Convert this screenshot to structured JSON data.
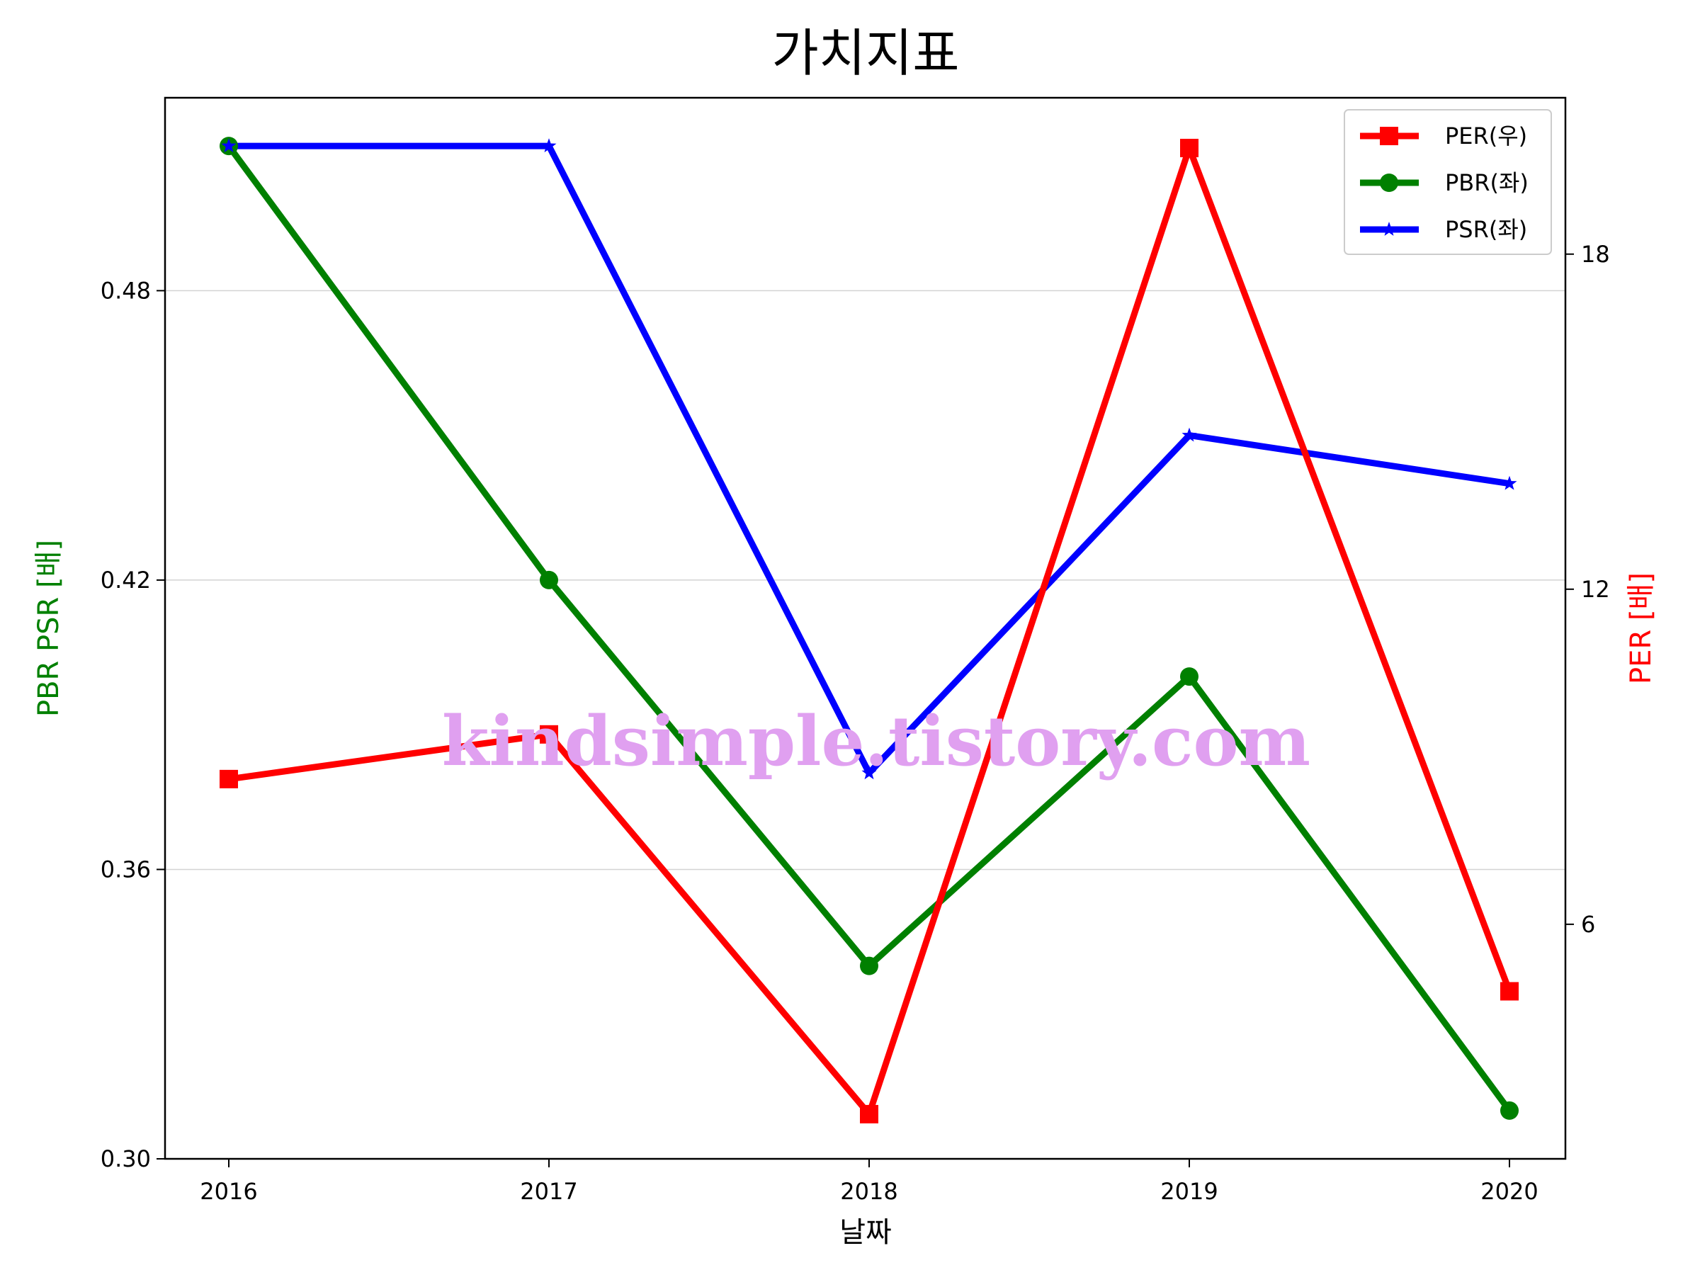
{
  "chart_data": {
    "type": "line",
    "title": "가치지표",
    "xlabel": "날짜",
    "ylabel_left": "PBR PSR [배]",
    "ylabel_right": "PER [배]",
    "x": [
      "2016",
      "2017",
      "2018",
      "2019",
      "2020"
    ],
    "left_axis": {
      "ylim": [
        0.3,
        0.52
      ],
      "ticks": [
        "0.30",
        "0.36",
        "0.42",
        "0.48"
      ],
      "tick_values": [
        0.3,
        0.36,
        0.42,
        0.48
      ]
    },
    "right_axis": {
      "ylim": [
        1.8,
        20.8
      ],
      "ticks": [
        "6",
        "12",
        "18"
      ],
      "tick_values": [
        6,
        12,
        18
      ]
    },
    "series": [
      {
        "name": "PER(우)",
        "axis": "right",
        "color": "#ff0000",
        "marker": "square",
        "values": [
          8.6,
          9.4,
          2.6,
          19.9,
          4.8
        ]
      },
      {
        "name": "PBR(좌)",
        "axis": "left",
        "color": "#008000",
        "marker": "circle",
        "values": [
          0.51,
          0.42,
          0.34,
          0.4,
          0.31
        ]
      },
      {
        "name": "PSR(좌)",
        "axis": "left",
        "color": "#0000ff",
        "marker": "star",
        "values": [
          0.51,
          0.51,
          0.38,
          0.45,
          0.44
        ]
      }
    ],
    "grid": "horizontal",
    "legend_position": "top-right",
    "watermark": "kindsimple.tistory.com",
    "watermark_color": "#e0a0f0"
  }
}
